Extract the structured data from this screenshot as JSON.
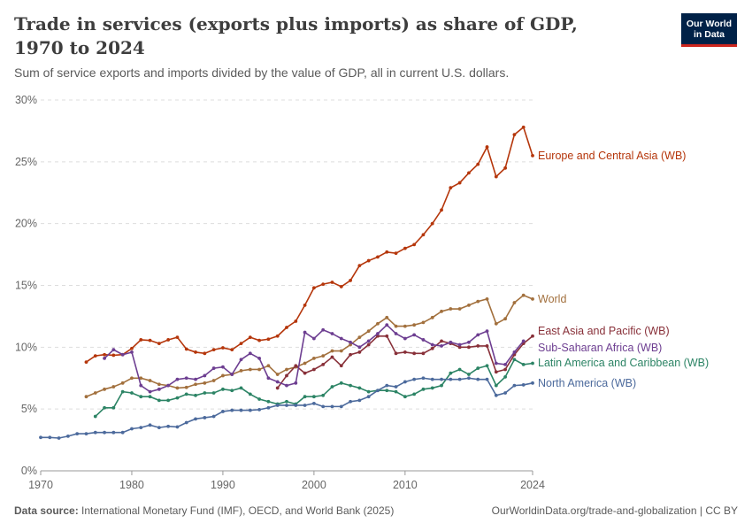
{
  "header": {
    "title": "Trade in services (exports plus imports) as share of GDP, 1970 to 2024",
    "subtitle": "Sum of service exports and imports divided by the value of GDP, all in current U.S. dollars.",
    "logo_text": "Our World in Data"
  },
  "footer": {
    "source_label": "Data source:",
    "source": "International Monetary Fund (IMF), OECD, and World Bank (2025)",
    "link": "OurWorldinData.org/trade-and-globalization | CC BY"
  },
  "chart_data": {
    "type": "line",
    "title": "Trade in services (exports plus imports) as share of GDP, 1970 to 2024",
    "xlim": [
      1970,
      2024
    ],
    "ylim": [
      0,
      30
    ],
    "x_ticks": [
      "1970",
      "1980",
      "1990",
      "2000",
      "2010",
      "2024"
    ],
    "y_ticks": [
      "0%",
      "5%",
      "10%",
      "15%",
      "20%",
      "25%",
      "30%"
    ],
    "grid": "horizontal dashed",
    "legend": "inline labels at line ends (right)",
    "series": [
      {
        "name": "Europe and Central Asia (WB)",
        "color": "#b5360b",
        "start_year": 1975,
        "values": [
          8.8,
          9.3,
          9.4,
          9.35,
          9.4,
          9.9,
          10.6,
          10.55,
          10.3,
          10.6,
          10.8,
          9.85,
          9.6,
          9.5,
          9.8,
          9.95,
          9.8,
          10.3,
          10.8,
          10.55,
          10.65,
          10.9,
          11.6,
          12.1,
          13.4,
          14.8,
          15.1,
          15.25,
          14.9,
          15.4,
          16.6,
          17.0,
          17.3,
          17.7,
          17.6,
          18.0,
          18.3,
          19.1,
          20.0,
          21.1,
          22.9,
          23.3,
          24.1,
          24.8,
          26.2,
          23.8,
          24.5,
          27.2,
          27.8,
          25.5
        ]
      },
      {
        "name": "World",
        "color": "#a2703d",
        "start_year": 1975,
        "values": [
          6.0,
          6.3,
          6.6,
          6.8,
          7.1,
          7.5,
          7.5,
          7.3,
          7.0,
          6.9,
          6.7,
          6.75,
          7.0,
          7.1,
          7.3,
          7.7,
          7.8,
          8.1,
          8.2,
          8.2,
          8.5,
          7.8,
          8.2,
          8.4,
          8.7,
          9.1,
          9.3,
          9.7,
          9.7,
          10.2,
          10.8,
          11.3,
          11.9,
          12.4,
          11.7,
          11.7,
          11.8,
          12.0,
          12.4,
          12.9,
          13.1,
          13.1,
          13.4,
          13.7,
          13.9,
          11.9,
          12.3,
          13.6,
          14.2,
          13.9
        ]
      },
      {
        "name": "East Asia and Pacific (WB)",
        "color": "#883039",
        "start_year": 1996,
        "values": [
          6.7,
          7.7,
          8.5,
          7.9,
          8.2,
          8.6,
          9.2,
          8.5,
          9.4,
          9.6,
          10.2,
          10.9,
          10.9,
          9.5,
          9.6,
          9.5,
          9.5,
          9.9,
          10.5,
          10.3,
          10.0,
          10.0,
          10.1,
          10.1,
          8.0,
          8.2,
          9.4,
          10.3,
          10.9
        ]
      },
      {
        "name": "Sub-Saharan Africa (WB)",
        "color": "#6d3e91",
        "start_year": 1977,
        "values": [
          9.1,
          9.8,
          9.4,
          9.6,
          6.9,
          6.4,
          6.6,
          6.9,
          7.4,
          7.5,
          7.4,
          7.7,
          8.3,
          8.4,
          7.8,
          9.0,
          9.5,
          9.1,
          7.5,
          7.2,
          6.9,
          7.1,
          11.2,
          10.7,
          11.4,
          11.1,
          10.7,
          10.4,
          10.0,
          10.5,
          11.1,
          11.8,
          11.1,
          10.7,
          11.0,
          10.6,
          10.2,
          10.1,
          10.4,
          10.2,
          10.4,
          11.0,
          11.3,
          8.7,
          8.6,
          9.6,
          10.5
        ]
      },
      {
        "name": "Latin America and Caribbean (WB)",
        "color": "#2c8465",
        "start_year": 1976,
        "values": [
          4.4,
          5.1,
          5.1,
          6.4,
          6.3,
          6.0,
          6.0,
          5.7,
          5.7,
          5.9,
          6.2,
          6.1,
          6.3,
          6.3,
          6.6,
          6.5,
          6.7,
          6.2,
          5.8,
          5.6,
          5.4,
          5.6,
          5.4,
          6.0,
          6.0,
          6.1,
          6.8,
          7.1,
          6.9,
          6.7,
          6.4,
          6.5,
          6.5,
          6.4,
          6.0,
          6.2,
          6.6,
          6.7,
          6.9,
          7.9,
          8.2,
          7.8,
          8.3,
          8.5,
          6.9,
          7.6,
          9.0,
          8.6,
          8.7
        ]
      },
      {
        "name": "North America (WB)",
        "color": "#4c6a9c",
        "start_year": 1970,
        "values": [
          2.7,
          2.7,
          2.65,
          2.8,
          3.0,
          3.0,
          3.1,
          3.1,
          3.1,
          3.1,
          3.4,
          3.5,
          3.7,
          3.5,
          3.6,
          3.55,
          3.9,
          4.2,
          4.3,
          4.4,
          4.8,
          4.9,
          4.9,
          4.9,
          4.95,
          5.1,
          5.3,
          5.3,
          5.3,
          5.3,
          5.45,
          5.2,
          5.2,
          5.2,
          5.6,
          5.7,
          6.0,
          6.5,
          6.9,
          6.8,
          7.2,
          7.4,
          7.5,
          7.4,
          7.4,
          7.4,
          7.4,
          7.5,
          7.4,
          7.4,
          6.1,
          6.3,
          6.9,
          6.95,
          7.1
        ]
      }
    ]
  }
}
